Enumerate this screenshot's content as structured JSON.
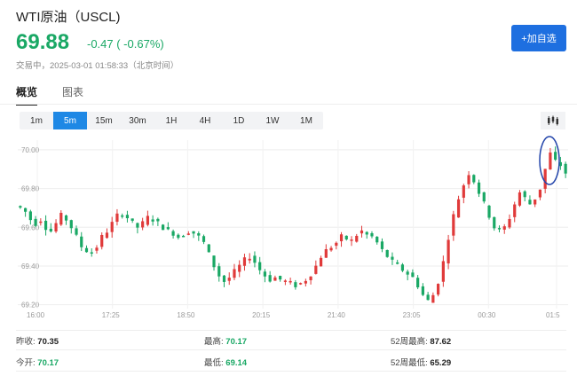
{
  "header": {
    "title": "WTI原油（USCL)",
    "price": "69.88",
    "change": "-0.47 ( -0.67%)",
    "status": "交易中，2025-03-01 01:58:33（北京时间）",
    "add_button": "+加自选"
  },
  "tabs": [
    "概览",
    "图表"
  ],
  "periods": [
    "1m",
    "5m",
    "15m",
    "30m",
    "1H",
    "4H",
    "1D",
    "1W",
    "1M"
  ],
  "active_period": "5m",
  "colors": {
    "up": "#e03a3a",
    "down": "#1aa865",
    "accent": "#1e88e5"
  },
  "stats": {
    "prev_close_label": "昨收:",
    "prev_close": "70.35",
    "open_label": "今开:",
    "open": "70.17",
    "high_label": "最高:",
    "high": "70.17",
    "low_label": "最低:",
    "low": "69.14",
    "w52_high_label": "52周最高:",
    "w52_high": "87.62",
    "w52_low_label": "52周最低:",
    "w52_low": "65.29"
  },
  "chart_data": {
    "type": "candlestick",
    "y_ticks": [
      "70.00",
      "69.80",
      "69.60",
      "69.40",
      "69.20"
    ],
    "x_ticks": [
      "16:00",
      "17:25",
      "18:50",
      "20:15",
      "21:40",
      "23:05",
      "00:30",
      "01:5"
    ],
    "ylim": [
      69.18,
      70.05
    ],
    "grid": true,
    "annotation": "circle around latest high",
    "close_path": [
      69.7,
      69.68,
      69.64,
      69.62,
      69.64,
      69.6,
      69.58,
      69.62,
      69.66,
      69.64,
      69.6,
      69.55,
      69.5,
      69.48,
      69.47,
      69.5,
      69.55,
      69.58,
      69.62,
      69.66,
      69.67,
      69.65,
      69.62,
      69.6,
      69.62,
      69.65,
      69.64,
      69.62,
      69.6,
      69.58,
      69.57,
      69.55,
      69.56,
      69.58,
      69.57,
      69.55,
      69.52,
      69.46,
      69.4,
      69.35,
      69.32,
      69.34,
      69.37,
      69.4,
      69.43,
      69.45,
      69.42,
      69.38,
      69.35,
      69.33,
      69.34,
      69.33,
      69.32,
      69.31,
      69.3,
      69.31,
      69.33,
      69.36,
      69.4,
      69.45,
      69.48,
      69.5,
      69.52,
      69.55,
      69.54,
      69.53,
      69.56,
      69.58,
      69.56,
      69.55,
      69.52,
      69.48,
      69.45,
      69.42,
      69.4,
      69.38,
      69.36,
      69.34,
      69.3,
      69.25,
      69.22,
      69.25,
      69.32,
      69.42,
      69.55,
      69.66,
      69.75,
      69.82,
      69.88,
      69.84,
      69.78,
      69.72,
      69.66,
      69.6,
      69.58,
      69.6,
      69.65,
      69.72,
      69.78,
      69.75,
      69.72,
      69.75,
      69.8,
      69.9,
      69.98,
      69.94,
      69.92,
      69.88
    ]
  }
}
